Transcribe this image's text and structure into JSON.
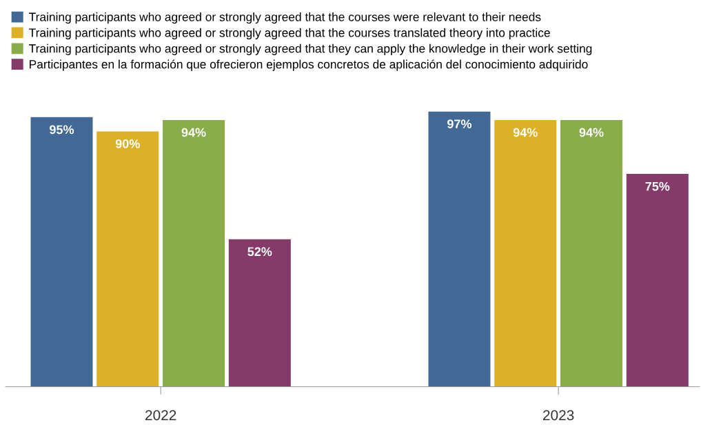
{
  "chart_data": {
    "type": "bar",
    "categories": [
      "2022",
      "2023"
    ],
    "series": [
      {
        "name": "Training participants who agreed or strongly agreed that the courses were relevant to their needs",
        "color": "#426895",
        "values": [
          95,
          97
        ],
        "value_labels": [
          "95%",
          "97%"
        ]
      },
      {
        "name": "Training participants who agreed or strongly agreed that the courses translated theory into practice",
        "color": "#ddb027",
        "values": [
          90,
          94
        ],
        "value_labels": [
          "90%",
          "94%"
        ]
      },
      {
        "name": "Training participants who agreed or strongly agreed that they can apply the knowledge in their work setting",
        "color": "#8aad4b",
        "values": [
          94,
          94
        ],
        "value_labels": [
          "94%",
          "94%"
        ]
      },
      {
        "name": "Participantes en la formación que ofrecieron ejemplos concretos de aplicación del conocimiento adquirido",
        "color": "#843b69",
        "values": [
          52,
          75
        ],
        "value_labels": [
          "52%",
          "75%"
        ]
      }
    ],
    "legend": "top left",
    "grid": false
  }
}
